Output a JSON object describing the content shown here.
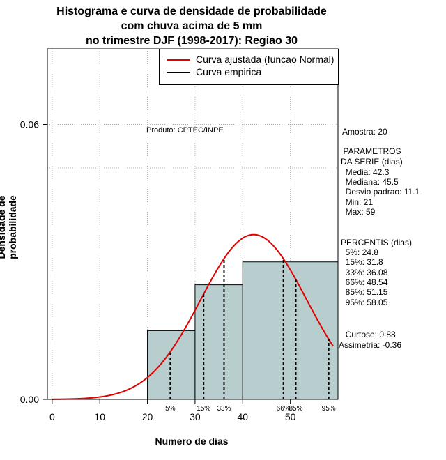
{
  "chart_data": {
    "type": "histogram",
    "title_lines": [
      "Histograma e curva de densidade de probabilidade",
      "com chuva acima de 5 mm",
      "no trimestre DJF (1998-2017): Regiao 30"
    ],
    "xlabel": "Numero de dias",
    "ylabel": "Densidade de probabilidade",
    "xlim": [
      -1,
      60
    ],
    "ylim": [
      0,
      0.0765
    ],
    "x_ticks": [
      0,
      10,
      20,
      30,
      40,
      50
    ],
    "y_ticks": [
      0.0,
      0.06
    ],
    "y_tick_labels": [
      "0.00",
      "0.06"
    ],
    "bins": [
      {
        "from": 20,
        "to": 30,
        "density": 0.015
      },
      {
        "from": 30,
        "to": 40,
        "density": 0.025
      },
      {
        "from": 40,
        "to": 60,
        "density": 0.03
      }
    ],
    "normal_fit": {
      "mean": 42.3,
      "sd": 11.1,
      "x_from": 0,
      "x_to": 59
    },
    "percentiles": [
      {
        "label": "5%",
        "value": 24.8
      },
      {
        "label": "15%",
        "value": 31.8
      },
      {
        "label": "33%",
        "value": 36.08
      },
      {
        "label": "66%",
        "value": 48.54
      },
      {
        "label": "85%",
        "value": 51.15
      },
      {
        "label": "95%",
        "value": 58.05
      }
    ],
    "legend": [
      {
        "label": "Curva ajustada (funcao Normal)",
        "color": "#e00000"
      },
      {
        "label": "Curva empirica",
        "color": "#000000"
      }
    ],
    "colors": {
      "bar_fill": "#b8cece",
      "fit_line": "#e00000",
      "grid": "#b0b0b0"
    },
    "product_label": "Produto: CPTEC/INPE"
  },
  "stats_panel": {
    "amostra": "Amostra: 20",
    "param_title_1": " PARAMETROS",
    "param_title_2": "DA SERIE (dias)",
    "media": "  Media: 42.3",
    "mediana": "  Mediana: 45.5",
    "desvio": "  Desvio padrao: 11.1",
    "min": "  Min: 21",
    "max": "  Max: 59",
    "perc_title": "PERCENTIS (dias)",
    "p5": "  5%: 24.8",
    "p15": "  15%: 31.8",
    "p33": "  33%: 36.08",
    "p66": "  66%: 48.54",
    "p85": "  85%: 51.15",
    "p95": "  95%: 58.05",
    "curtose": "  Curtose: 0.88",
    "assimetria": "Assimetria: -0.36"
  }
}
